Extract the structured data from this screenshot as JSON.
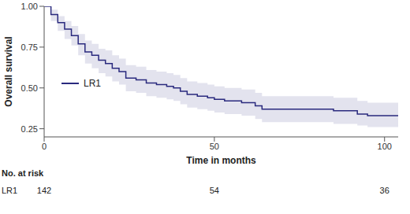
{
  "chart_data": {
    "type": "line",
    "x_label": "Time in months",
    "y_label": "Overall survival",
    "xlim": [
      0,
      104
    ],
    "xticks": [
      0,
      50,
      100
    ],
    "ylim": [
      0.2,
      1.0
    ],
    "yticks": [
      0.25,
      {
        "value": 0.5,
        "label": "0.50"
      },
      0.75,
      {
        "value": 1.0,
        "label": "1.00"
      }
    ],
    "legend": "left",
    "x": [
      0,
      2,
      4,
      6,
      8,
      10,
      12,
      14,
      16,
      18,
      20,
      22,
      24,
      27,
      30,
      33,
      36,
      38,
      40,
      42,
      45,
      48,
      50,
      53,
      58,
      62,
      64,
      85,
      92,
      95,
      104
    ],
    "series": [
      {
        "name": "LR1",
        "color": "#2a2a7e",
        "line_style": "step",
        "values": [
          1.0,
          0.95,
          0.9,
          0.86,
          0.82,
          0.77,
          0.72,
          0.7,
          0.67,
          0.65,
          0.62,
          0.6,
          0.56,
          0.55,
          0.53,
          0.52,
          0.51,
          0.5,
          0.48,
          0.46,
          0.45,
          0.44,
          0.43,
          0.42,
          0.41,
          0.39,
          0.37,
          0.36,
          0.34,
          0.33,
          0.33
        ],
        "ci_lower": [
          1.0,
          0.91,
          0.85,
          0.8,
          0.76,
          0.7,
          0.65,
          0.62,
          0.59,
          0.57,
          0.54,
          0.52,
          0.48,
          0.47,
          0.45,
          0.44,
          0.43,
          0.42,
          0.4,
          0.38,
          0.37,
          0.36,
          0.35,
          0.34,
          0.33,
          0.31,
          0.29,
          0.28,
          0.27,
          0.26,
          0.26
        ],
        "ci_upper": [
          1.0,
          0.98,
          0.94,
          0.91,
          0.88,
          0.83,
          0.79,
          0.77,
          0.74,
          0.73,
          0.7,
          0.68,
          0.64,
          0.63,
          0.61,
          0.6,
          0.59,
          0.58,
          0.56,
          0.54,
          0.53,
          0.52,
          0.51,
          0.5,
          0.49,
          0.47,
          0.45,
          0.44,
          0.42,
          0.41,
          0.41
        ]
      }
    ],
    "risk_table": {
      "title": "No. at risk",
      "rows": [
        {
          "name": "LR1",
          "times": [
            0,
            50,
            100
          ],
          "values": [
            142,
            54,
            36
          ]
        }
      ]
    }
  }
}
